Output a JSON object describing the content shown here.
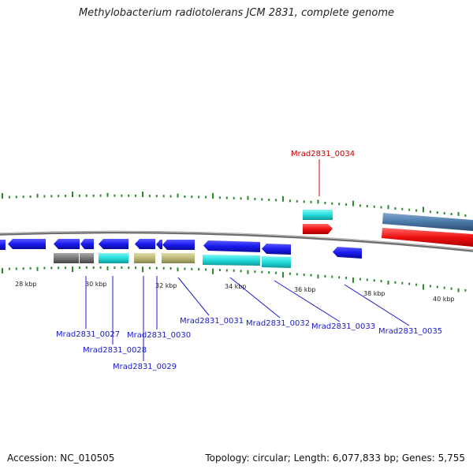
{
  "title": "Methylobacterium radiotolerans JCM 2831, complete genome",
  "footer": {
    "accession": "Accession: NC_010505",
    "summary": "Topology: circular; Length: 6,077,833 bp; Genes: 5,755"
  },
  "colors": {
    "backbone": "#8a8a8a",
    "tick": "#2a8a2a",
    "label_blue": "#1a1acc",
    "label_red": "#cc0000",
    "gene_blue": "#1a1aee",
    "gene_cyan": "#22dddd",
    "gene_gray": "#777777",
    "gene_khaki": "#bdb87a",
    "gene_red": "#ee1111",
    "gene_steel": "#4a7aaa"
  },
  "scale_labels": [
    {
      "text": "28 kbp"
    },
    {
      "text": "30 kbp"
    },
    {
      "text": "32 kbp"
    },
    {
      "text": "34 kbp"
    },
    {
      "text": "36 kbp"
    },
    {
      "text": "38 kbp"
    },
    {
      "text": "40 kbp"
    }
  ],
  "gene_labels": [
    {
      "name": "Mrad2831_0027",
      "color": "#1a1acc"
    },
    {
      "name": "Mrad2831_0028",
      "color": "#1a1acc"
    },
    {
      "name": "Mrad2831_0029",
      "color": "#1a1acc"
    },
    {
      "name": "Mrad2831_0030",
      "color": "#1a1acc"
    },
    {
      "name": "Mrad2831_0031",
      "color": "#1a1acc"
    },
    {
      "name": "Mrad2831_0032",
      "color": "#1a1acc"
    },
    {
      "name": "Mrad2831_0033",
      "color": "#1a1acc"
    },
    {
      "name": "Mrad2831_0035",
      "color": "#1a1acc"
    },
    {
      "name": "Mrad2831_0034",
      "color": "#cc0000"
    }
  ]
}
